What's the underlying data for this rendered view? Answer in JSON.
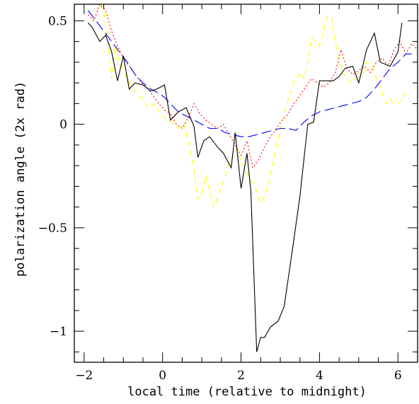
{
  "chart_data": {
    "type": "line",
    "xlabel": "local time (relative to midnight)",
    "ylabel": "polarization angle (2x rad)",
    "xlim": [
      -2.25,
      6.5
    ],
    "ylim": [
      -1.15,
      0.58
    ],
    "xticks": [
      -2,
      0,
      2,
      4,
      6
    ],
    "xtick_labels": [
      "−2",
      "0",
      "2",
      "4",
      "6"
    ],
    "yticks": [
      -1,
      -0.5,
      0,
      0.5
    ],
    "ytick_labels": [
      "−1",
      "−0.5",
      "0",
      "0.5"
    ],
    "grid": false,
    "series": [
      {
        "color": "#000000",
        "dash": "none",
        "x": [
          -1.9,
          -1.8,
          -1.6,
          -1.45,
          -1.3,
          -1.15,
          -1.0,
          -0.85,
          -0.7,
          -0.5,
          -0.3,
          -0.15,
          0.05,
          0.2,
          0.4,
          0.6,
          0.8,
          0.9,
          1.05,
          1.2,
          1.4,
          1.55,
          1.75,
          1.85,
          2.0,
          2.15,
          2.25,
          2.4,
          2.5,
          2.6,
          2.75,
          2.95,
          3.1,
          3.3,
          3.5,
          3.7,
          3.85,
          4.0,
          4.2,
          4.35,
          4.5,
          4.65,
          4.85,
          5.0,
          5.2,
          5.4,
          5.55,
          5.8,
          6.0,
          6.1
        ],
        "y": [
          0.49,
          0.47,
          0.4,
          0.43,
          0.35,
          0.21,
          0.33,
          0.17,
          0.2,
          0.19,
          0.16,
          0.17,
          0.19,
          0.02,
          0.06,
          0.08,
          -0.01,
          -0.16,
          -0.08,
          -0.06,
          -0.11,
          -0.14,
          -0.21,
          -0.04,
          -0.31,
          -0.14,
          -0.32,
          -1.1,
          -1.03,
          -1.03,
          -0.98,
          -0.95,
          -0.88,
          -0.62,
          -0.35,
          0.0,
          0.01,
          0.21,
          0.21,
          0.21,
          0.23,
          0.27,
          0.28,
          0.2,
          0.36,
          0.44,
          0.3,
          0.28,
          0.35,
          0.49
        ]
      },
      {
        "color": "#0000ff",
        "dash": "14 6",
        "x": [
          -1.9,
          -1.7,
          -1.5,
          -1.3,
          -1.1,
          -0.9,
          -0.7,
          -0.5,
          -0.3,
          -0.1,
          0.05,
          0.2,
          0.4,
          0.6,
          0.8,
          1.0,
          1.2,
          1.4,
          1.6,
          1.8,
          2.0,
          2.2,
          2.4,
          2.6,
          2.8,
          3.0,
          3.2,
          3.4,
          3.6,
          3.8,
          4.0,
          4.2,
          4.4,
          4.6,
          4.8,
          5.0,
          5.2,
          5.4,
          5.6,
          5.8,
          6.0,
          6.2,
          6.4
        ],
        "y": [
          0.55,
          0.5,
          0.45,
          0.4,
          0.35,
          0.3,
          0.24,
          0.2,
          0.17,
          0.15,
          0.13,
          0.1,
          0.06,
          0.04,
          0.02,
          0.0,
          -0.02,
          -0.02,
          -0.04,
          -0.05,
          -0.06,
          -0.06,
          -0.05,
          -0.04,
          -0.03,
          -0.02,
          -0.02,
          -0.03,
          0.01,
          0.04,
          0.06,
          0.07,
          0.08,
          0.09,
          0.1,
          0.11,
          0.13,
          0.17,
          0.22,
          0.27,
          0.3,
          0.34,
          0.34
        ]
      },
      {
        "color": "#ff0000",
        "dash": "2 3",
        "x": [
          -1.9,
          -1.75,
          -1.6,
          -1.45,
          -1.3,
          -1.15,
          -1.0,
          -0.85,
          -0.7,
          -0.55,
          -0.4,
          -0.25,
          -0.1,
          0.05,
          0.2,
          0.35,
          0.5,
          0.65,
          0.8,
          0.95,
          1.1,
          1.25,
          1.4,
          1.55,
          1.7,
          1.85,
          2.0,
          2.15,
          2.3,
          2.45,
          2.6,
          2.75,
          2.9,
          3.05,
          3.2,
          3.35,
          3.5,
          3.65,
          3.8,
          3.95,
          4.1,
          4.25,
          4.4,
          4.55,
          4.7,
          4.85,
          5.0,
          5.15,
          5.3,
          5.45,
          5.6,
          5.75,
          5.9,
          6.05,
          6.2,
          6.35,
          6.5
        ],
        "y": [
          0.53,
          0.5,
          0.58,
          0.55,
          0.45,
          0.38,
          0.32,
          0.28,
          0.24,
          0.2,
          0.18,
          0.14,
          0.1,
          0.07,
          0.05,
          0.0,
          -0.02,
          0.03,
          0.1,
          0.05,
          0.02,
          0.0,
          -0.02,
          0.0,
          -0.05,
          -0.1,
          -0.15,
          -0.08,
          -0.21,
          -0.17,
          -0.11,
          -0.06,
          -0.02,
          0.02,
          0.05,
          0.1,
          0.14,
          0.18,
          0.22,
          0.2,
          0.18,
          0.2,
          0.25,
          0.36,
          0.27,
          0.24,
          0.26,
          0.28,
          0.25,
          0.3,
          0.32,
          0.28,
          0.36,
          0.4,
          0.34,
          0.39,
          0.36
        ]
      },
      {
        "color": "#ffff00",
        "dash": "8 5",
        "x": [
          -1.6,
          -1.5,
          -1.4,
          -1.3,
          -1.2,
          -1.1,
          -1.0,
          -0.9,
          -0.8,
          -0.65,
          -0.5,
          -0.35,
          -0.2,
          -0.05,
          0.1,
          0.25,
          0.4,
          0.55,
          0.7,
          0.8,
          0.9,
          1.0,
          1.1,
          1.2,
          1.3,
          1.4,
          1.5,
          1.6,
          1.7,
          1.8,
          1.9,
          2.0,
          2.1,
          2.2,
          2.35,
          2.5,
          2.6,
          2.7,
          2.8,
          2.9,
          3.0,
          3.1,
          3.2,
          3.35,
          3.5,
          3.6,
          3.7,
          3.8,
          3.9,
          4.0,
          4.1,
          4.2,
          4.3,
          4.4,
          4.5,
          4.6,
          4.7,
          4.8,
          4.9,
          5.0,
          5.1,
          5.2,
          5.35,
          5.5,
          5.6,
          5.7,
          5.8,
          5.9,
          6.0,
          6.1,
          6.2
        ],
        "y": [
          0.58,
          0.55,
          0.4,
          0.22,
          0.38,
          0.3,
          0.26,
          0.22,
          0.18,
          0.15,
          0.12,
          0.08,
          0.1,
          0.05,
          0.02,
          0.01,
          -0.02,
          0.0,
          -0.12,
          -0.22,
          -0.36,
          -0.34,
          -0.25,
          -0.32,
          -0.4,
          -0.36,
          -0.3,
          -0.25,
          -0.18,
          -0.15,
          -0.12,
          -0.18,
          -0.22,
          -0.25,
          -0.3,
          -0.38,
          -0.35,
          -0.28,
          -0.2,
          -0.1,
          -0.03,
          0.05,
          0.12,
          0.2,
          0.25,
          0.22,
          0.3,
          0.42,
          0.4,
          0.38,
          0.45,
          0.52,
          0.52,
          0.4,
          0.3,
          0.25,
          0.22,
          0.2,
          0.22,
          0.25,
          0.23,
          0.3,
          0.28,
          0.2,
          0.15,
          0.1,
          0.12,
          0.1,
          0.1,
          0.12,
          0.15
        ]
      }
    ]
  }
}
